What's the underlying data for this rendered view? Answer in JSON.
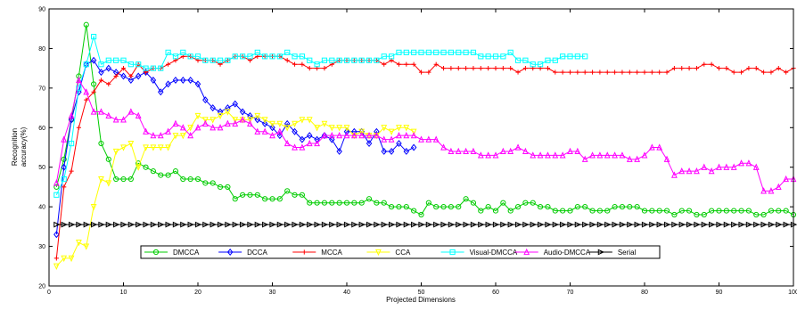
{
  "chart_data": {
    "type": "line",
    "title": "",
    "xlabel": "Projected Dimensions",
    "ylabel": "Recognition accuracy(%)",
    "ylabel_lines": [
      "Recognition",
      "accuracy(%)"
    ],
    "xlim": [
      0,
      100
    ],
    "ylim": [
      20,
      90
    ],
    "xticks": [
      0,
      10,
      20,
      30,
      40,
      50,
      60,
      70,
      80,
      90,
      100
    ],
    "yticks": [
      20,
      30,
      40,
      50,
      60,
      70,
      80,
      90
    ],
    "grid": false,
    "legend": "bottom-center",
    "series": [
      {
        "name": "DMCCA",
        "color": "#00cc00",
        "marker": "circle",
        "x": [
          1,
          2,
          3,
          4,
          5,
          6,
          7,
          8,
          9,
          10,
          11,
          12,
          13,
          14,
          15,
          16,
          17,
          18,
          19,
          20,
          21,
          22,
          23,
          24,
          25,
          26,
          27,
          28,
          29,
          30,
          31,
          32,
          33,
          34,
          35,
          36,
          37,
          38,
          39,
          40,
          41,
          42,
          43,
          44,
          45,
          46,
          47,
          48,
          49,
          50,
          51,
          52,
          53,
          54,
          55,
          56,
          57,
          58,
          59,
          60,
          61,
          62,
          63,
          64,
          65,
          66,
          67,
          68,
          69,
          70,
          71,
          72,
          73,
          74,
          75,
          76,
          77,
          78,
          79,
          80,
          81,
          82,
          83,
          84,
          85,
          86,
          87,
          88,
          89,
          90,
          91,
          92,
          93,
          94,
          95,
          96,
          97,
          98,
          99,
          100
        ],
        "y": [
          45,
          52,
          62,
          73,
          86,
          71,
          56,
          52,
          47,
          47,
          47,
          51,
          50,
          49,
          48,
          48,
          49,
          47,
          47,
          47,
          46,
          46,
          45,
          45,
          42,
          43,
          43,
          43,
          42,
          42,
          42,
          44,
          43,
          43,
          41,
          41,
          41,
          41,
          41,
          41,
          41,
          41,
          42,
          41,
          41,
          40,
          40,
          40,
          39,
          38,
          41,
          40,
          40,
          40,
          40,
          42,
          41,
          39,
          40,
          39,
          41,
          39,
          40,
          41,
          41,
          40,
          40,
          39,
          39,
          39,
          40,
          40,
          39,
          39,
          39,
          40,
          40,
          40,
          40,
          39,
          39,
          39,
          39,
          38,
          39,
          39,
          38,
          38,
          39,
          39,
          39,
          39,
          39,
          39,
          38,
          38,
          39,
          39,
          39,
          38
        ]
      },
      {
        "name": "DCCA",
        "color": "#0000ff",
        "marker": "diamond",
        "x": [
          1,
          2,
          3,
          4,
          5,
          6,
          7,
          8,
          9,
          10,
          11,
          12,
          13,
          14,
          15,
          16,
          17,
          18,
          19,
          20,
          21,
          22,
          23,
          24,
          25,
          26,
          27,
          28,
          29,
          30,
          31,
          32,
          33,
          34,
          35,
          36,
          37,
          38,
          39,
          40,
          41,
          42,
          43,
          44,
          45,
          46,
          47,
          48,
          49
        ],
        "y": [
          33,
          50,
          62,
          69,
          76,
          77,
          74,
          75,
          74,
          73,
          72,
          73,
          74,
          72,
          69,
          71,
          72,
          72,
          72,
          71,
          67,
          65,
          64,
          65,
          66,
          64,
          63,
          62,
          61,
          60,
          58,
          61,
          59,
          57,
          58,
          57,
          58,
          57,
          54,
          59,
          59,
          59,
          56,
          59,
          54,
          54,
          56,
          54,
          55
        ]
      },
      {
        "name": "MCCA",
        "color": "#ff0000",
        "marker": "plus",
        "x": [
          1,
          2,
          3,
          4,
          5,
          6,
          7,
          8,
          9,
          10,
          11,
          12,
          13,
          14,
          15,
          16,
          17,
          18,
          19,
          20,
          21,
          22,
          23,
          24,
          25,
          26,
          27,
          28,
          29,
          30,
          31,
          32,
          33,
          34,
          35,
          36,
          37,
          38,
          39,
          40,
          41,
          42,
          43,
          44,
          45,
          46,
          47,
          48,
          49,
          50,
          51,
          52,
          53,
          54,
          55,
          56,
          57,
          58,
          59,
          60,
          61,
          62,
          63,
          64,
          65,
          66,
          67,
          68,
          69,
          70,
          71,
          72,
          73,
          74,
          75,
          76,
          77,
          78,
          79,
          80,
          81,
          82,
          83,
          84,
          85,
          86,
          87,
          88,
          89,
          90,
          91,
          92,
          93,
          94,
          95,
          96,
          97,
          98,
          99,
          100
        ],
        "y": [
          27,
          45,
          49,
          60,
          67,
          69,
          72,
          71,
          73,
          75,
          73,
          76,
          74,
          75,
          75,
          76,
          77,
          78,
          78,
          77,
          77,
          77,
          76,
          77,
          78,
          78,
          77,
          78,
          78,
          78,
          78,
          77,
          76,
          76,
          75,
          75,
          75,
          76,
          77,
          77,
          77,
          77,
          77,
          77,
          76,
          77,
          76,
          76,
          76,
          74,
          74,
          76,
          75,
          75,
          75,
          75,
          75,
          75,
          75,
          75,
          75,
          75,
          74,
          75,
          75,
          75,
          75,
          74,
          74,
          74,
          74,
          74,
          74,
          74,
          74,
          74,
          74,
          74,
          74,
          74,
          74,
          74,
          74,
          75,
          75,
          75,
          75,
          76,
          76,
          75,
          75,
          74,
          74,
          75,
          75,
          74,
          74,
          75,
          74,
          75
        ]
      },
      {
        "name": "CCA",
        "color": "#ffff00",
        "marker": "triangle-down",
        "x": [
          1,
          2,
          3,
          4,
          5,
          6,
          7,
          8,
          9,
          10,
          11,
          12,
          13,
          14,
          15,
          16,
          17,
          18,
          19,
          20,
          21,
          22,
          23,
          24,
          25,
          26,
          27,
          28,
          29,
          30,
          31,
          32,
          33,
          34,
          35,
          36,
          37,
          38,
          39,
          40,
          41,
          42,
          43,
          44,
          45,
          46,
          47,
          48,
          49
        ],
        "y": [
          25,
          27,
          27,
          31,
          30,
          40,
          47,
          46,
          54,
          55,
          56,
          50,
          55,
          55,
          55,
          55,
          58,
          58,
          60,
          63,
          62,
          62,
          63,
          64,
          62,
          62,
          62,
          63,
          62,
          61,
          61,
          60,
          61,
          62,
          62,
          60,
          61,
          60,
          60,
          60,
          58,
          59,
          58,
          58,
          60,
          59,
          60,
          60,
          59
        ]
      },
      {
        "name": "Visual-DMCCA",
        "color": "#00ffff",
        "marker": "square",
        "x": [
          1,
          2,
          3,
          4,
          5,
          6,
          7,
          8,
          9,
          10,
          11,
          12,
          13,
          14,
          15,
          16,
          17,
          18,
          19,
          20,
          21,
          22,
          23,
          24,
          25,
          26,
          27,
          28,
          29,
          30,
          31,
          32,
          33,
          34,
          35,
          36,
          37,
          38,
          39,
          40,
          41,
          42,
          43,
          44,
          45,
          46,
          47,
          48,
          49,
          50,
          51,
          52,
          53,
          54,
          55,
          56,
          57,
          58,
          59,
          60,
          61,
          62,
          63,
          64,
          65,
          66,
          67,
          68,
          69,
          70,
          71,
          72
        ],
        "y": [
          43,
          47,
          56,
          70,
          76,
          83,
          76,
          77,
          77,
          77,
          76,
          76,
          75,
          75,
          75,
          79,
          78,
          79,
          78,
          78,
          77,
          77,
          77,
          77,
          78,
          78,
          78,
          79,
          78,
          78,
          78,
          79,
          78,
          78,
          77,
          76,
          77,
          77,
          77,
          77,
          77,
          77,
          77,
          77,
          78,
          78,
          79,
          79,
          79,
          79,
          79,
          79,
          79,
          79,
          79,
          79,
          79,
          78,
          78,
          78,
          78,
          79,
          77,
          77,
          76,
          76,
          77,
          77,
          78,
          78,
          78,
          78
        ]
      },
      {
        "name": "Audio-DMCCA",
        "color": "#ff00ff",
        "marker": "triangle-up",
        "x": [
          1,
          2,
          3,
          4,
          5,
          6,
          7,
          8,
          9,
          10,
          11,
          12,
          13,
          14,
          15,
          16,
          17,
          18,
          19,
          20,
          21,
          22,
          23,
          24,
          25,
          26,
          27,
          28,
          29,
          30,
          31,
          32,
          33,
          34,
          35,
          36,
          37,
          38,
          39,
          40,
          41,
          42,
          43,
          44,
          45,
          46,
          47,
          48,
          49,
          50,
          51,
          52,
          53,
          54,
          55,
          56,
          57,
          58,
          59,
          60,
          61,
          62,
          63,
          64,
          65,
          66,
          67,
          68,
          69,
          70,
          71,
          72,
          73,
          74,
          75,
          76,
          77,
          78,
          79,
          80,
          81,
          82,
          83,
          84,
          85,
          86,
          87,
          88,
          89,
          90,
          91,
          92,
          93,
          94,
          95,
          96,
          97,
          98,
          99,
          100
        ],
        "y": [
          46,
          57,
          63,
          72,
          69,
          64,
          64,
          63,
          62,
          62,
          64,
          63,
          59,
          58,
          58,
          59,
          61,
          60,
          58,
          60,
          61,
          60,
          60,
          61,
          61,
          62,
          61,
          59,
          59,
          58,
          59,
          56,
          55,
          55,
          56,
          56,
          58,
          58,
          58,
          58,
          58,
          58,
          58,
          58,
          57,
          57,
          58,
          58,
          58,
          57,
          57,
          57,
          55,
          54,
          54,
          54,
          54,
          53,
          53,
          53,
          54,
          54,
          55,
          54,
          53,
          53,
          53,
          53,
          53,
          54,
          54,
          52,
          53,
          53,
          53,
          53,
          53,
          52,
          52,
          53,
          55,
          55,
          52,
          48,
          49,
          49,
          49,
          50,
          49,
          50,
          50,
          50,
          51,
          51,
          50,
          44,
          44,
          45,
          47,
          47
        ]
      },
      {
        "name": "Serial",
        "color": "#000000",
        "marker": "triangle-right",
        "x": [
          1,
          2,
          3,
          4,
          5,
          6,
          7,
          8,
          9,
          10,
          11,
          12,
          13,
          14,
          15,
          16,
          17,
          18,
          19,
          20,
          21,
          22,
          23,
          24,
          25,
          26,
          27,
          28,
          29,
          30,
          31,
          32,
          33,
          34,
          35,
          36,
          37,
          38,
          39,
          40,
          41,
          42,
          43,
          44,
          45,
          46,
          47,
          48,
          49,
          50,
          51,
          52,
          53,
          54,
          55,
          56,
          57,
          58,
          59,
          60,
          61,
          62,
          63,
          64,
          65,
          66,
          67,
          68,
          69,
          70,
          71,
          72,
          73,
          74,
          75,
          76,
          77,
          78,
          79,
          80,
          81,
          82,
          83,
          84,
          85,
          86,
          87,
          88,
          89,
          90,
          91,
          92,
          93,
          94,
          95,
          96,
          97,
          98,
          99,
          100
        ],
        "y": [
          35.5,
          35.5,
          35.5,
          35.5,
          35.5,
          35.5,
          35.5,
          35.5,
          35.5,
          35.5,
          35.5,
          35.5,
          35.5,
          35.5,
          35.5,
          35.5,
          35.5,
          35.5,
          35.5,
          35.5,
          35.5,
          35.5,
          35.5,
          35.5,
          35.5,
          35.5,
          35.5,
          35.5,
          35.5,
          35.5,
          35.5,
          35.5,
          35.5,
          35.5,
          35.5,
          35.5,
          35.5,
          35.5,
          35.5,
          35.5,
          35.5,
          35.5,
          35.5,
          35.5,
          35.5,
          35.5,
          35.5,
          35.5,
          35.5,
          35.5,
          35.5,
          35.5,
          35.5,
          35.5,
          35.5,
          35.5,
          35.5,
          35.5,
          35.5,
          35.5,
          35.5,
          35.5,
          35.5,
          35.5,
          35.5,
          35.5,
          35.5,
          35.5,
          35.5,
          35.5,
          35.5,
          35.5,
          35.5,
          35.5,
          35.5,
          35.5,
          35.5,
          35.5,
          35.5,
          35.5,
          35.5,
          35.5,
          35.5,
          35.5,
          35.5,
          35.5,
          35.5,
          35.5,
          35.5,
          35.5,
          35.5,
          35.5,
          35.5,
          35.5,
          35.5,
          35.5,
          35.5,
          35.5,
          35.5,
          35.5
        ]
      }
    ]
  }
}
